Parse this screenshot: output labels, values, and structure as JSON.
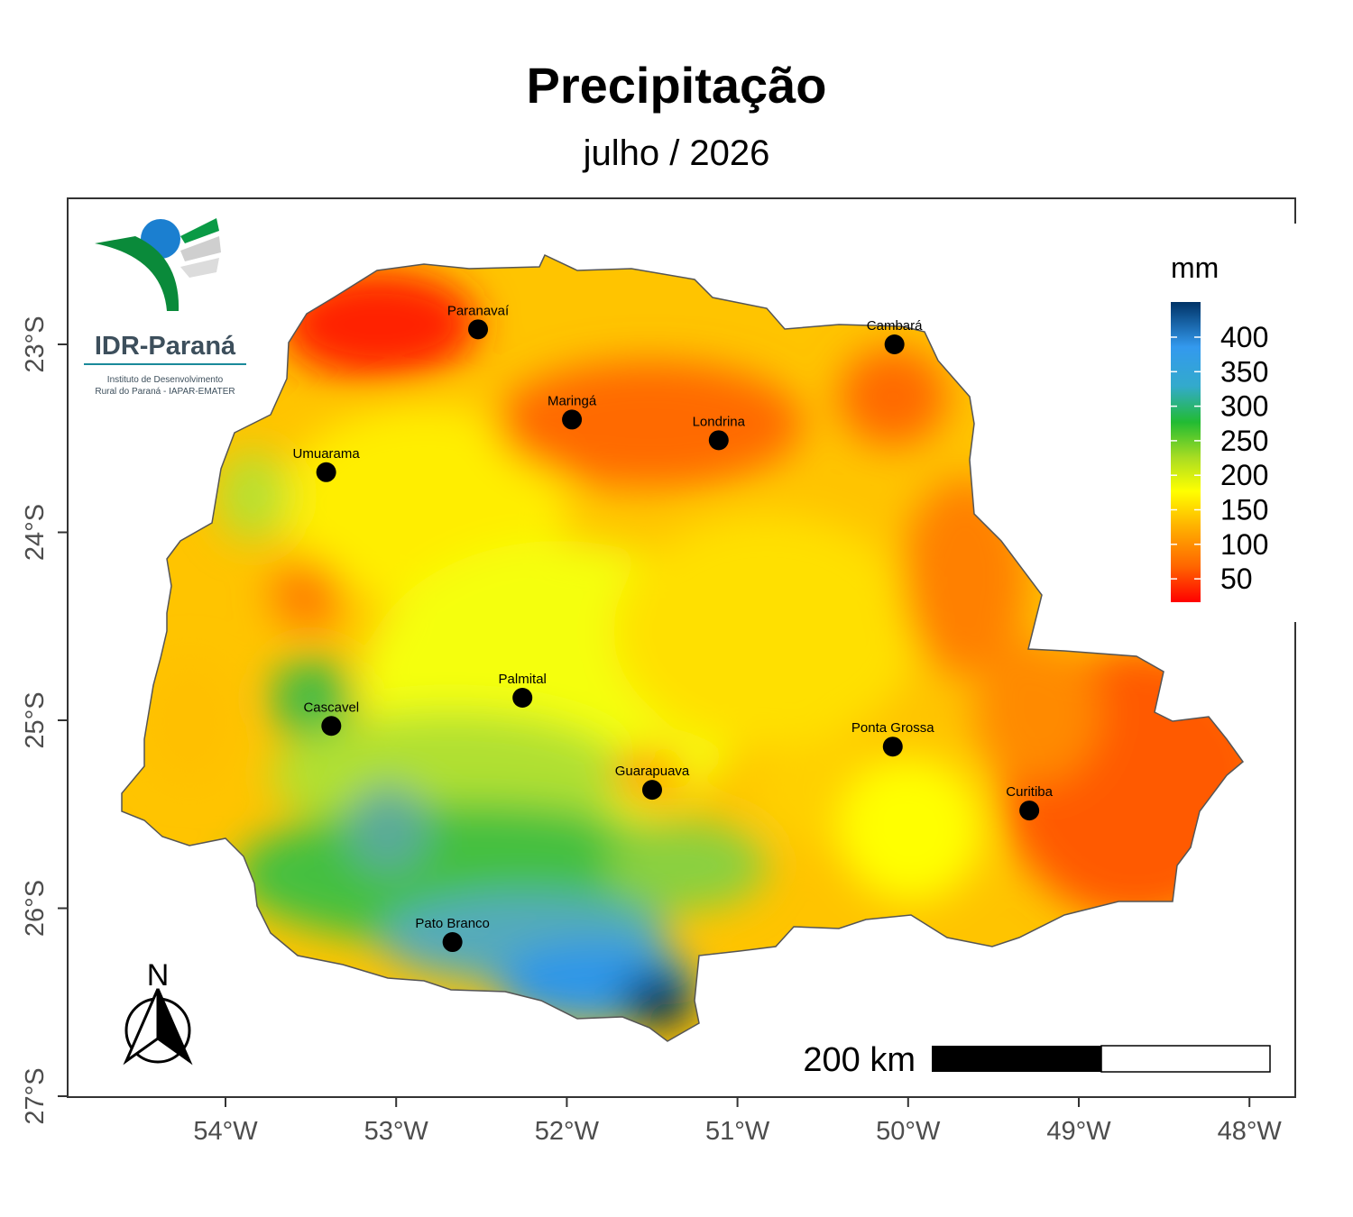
{
  "title": "Precipitação",
  "subtitle": "julho / 2026",
  "logo": {
    "name": "IDR-Paraná",
    "line1": "Instituto de Desenvolvimento",
    "line2": "Rural do Paraná - IAPAR-EMATER"
  },
  "legend": {
    "title": "mm",
    "ticks": [
      "400",
      "350",
      "300",
      "250",
      "200",
      "150",
      "100",
      "50"
    ],
    "gradient_colors": [
      "#ff0000",
      "#ff6600",
      "#ffb000",
      "#ffff00",
      "#aadd22",
      "#22bb33",
      "#33aacc",
      "#3399ee",
      "#003366"
    ]
  },
  "axes": {
    "x_ticks": [
      "54°W",
      "53°W",
      "52°W",
      "51°W",
      "50°W",
      "49°W",
      "48°W"
    ],
    "y_ticks": [
      "23°S",
      "24°S",
      "25°S",
      "26°S",
      "27°S"
    ]
  },
  "scale_bar": {
    "label": "200 km"
  },
  "north_arrow": {
    "label": "N"
  },
  "cities": [
    {
      "name": "Paranavaí",
      "lon": -52.52,
      "lat": -22.92
    },
    {
      "name": "Cambará",
      "lon": -50.08,
      "lat": -23.0
    },
    {
      "name": "Maringá",
      "lon": -51.97,
      "lat": -23.4
    },
    {
      "name": "Londrina",
      "lon": -51.11,
      "lat": -23.51
    },
    {
      "name": "Umuarama",
      "lon": -53.41,
      "lat": -23.68
    },
    {
      "name": "Palmital",
      "lon": -52.26,
      "lat": -24.88
    },
    {
      "name": "Cascavel",
      "lon": -53.38,
      "lat": -25.03
    },
    {
      "name": "Ponta Grossa",
      "lon": -50.09,
      "lat": -25.14
    },
    {
      "name": "Guarapuava",
      "lon": -51.5,
      "lat": -25.37
    },
    {
      "name": "Curitiba",
      "lon": -49.29,
      "lat": -25.48
    },
    {
      "name": "Pato Branco",
      "lon": -52.67,
      "lat": -26.18
    }
  ]
}
